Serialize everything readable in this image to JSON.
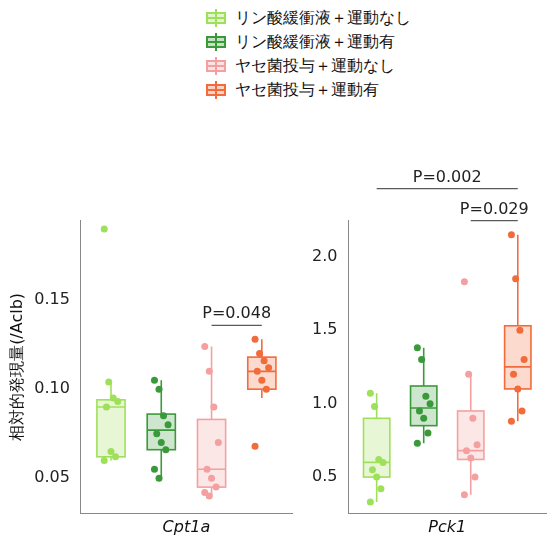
{
  "chart_data": [
    {
      "type": "box",
      "xlabel": "Cpt1a",
      "ylabel": "相対的発現量(/Aclb)",
      "ylim": [
        0.03,
        0.195
      ],
      "yticks": [
        0.05,
        {
          "value": 0.1,
          "label": "0.10"
        },
        0.15
      ],
      "grid": false,
      "legend": "top",
      "tick_labels": "y",
      "series": [
        {
          "name": "リン酸緩衝液＋運動なし",
          "color": "#9fe05a",
          "values": [
            0.19,
            0.104,
            0.095,
            0.093,
            0.09,
            0.065,
            0.062,
            0.06
          ],
          "box": {
            "low": 0.06,
            "q1": 0.062,
            "median": 0.09,
            "q3": 0.094,
            "high": 0.104
          }
        },
        {
          "name": "リン酸緩衝液＋運動有",
          "color": "#3a9a3a",
          "values": [
            0.105,
            0.1,
            0.085,
            0.08,
            0.075,
            0.07,
            0.066,
            0.055,
            0.05
          ],
          "box": {
            "low": 0.05,
            "q1": 0.066,
            "median": 0.077,
            "q3": 0.086,
            "high": 0.105
          }
        },
        {
          "name": "ヤセ菌投与＋運動なし",
          "color": "#f4a0a0",
          "values": [
            0.124,
            0.11,
            0.09,
            0.07,
            0.055,
            0.05,
            0.045,
            0.042,
            0.04
          ],
          "box": {
            "low": 0.04,
            "q1": 0.045,
            "median": 0.055,
            "q3": 0.083,
            "high": 0.124
          }
        },
        {
          "name": "ヤセ菌投与＋運動有",
          "color": "#f26b3a",
          "values": [
            0.128,
            0.12,
            0.116,
            0.112,
            0.11,
            0.105,
            0.1,
            0.068
          ],
          "box": {
            "low": 0.095,
            "q1": 0.1,
            "median": 0.11,
            "q3": 0.118,
            "high": 0.128
          }
        }
      ],
      "annotations": [
        {
          "text": "P=0.048",
          "from": 2,
          "to": 3
        }
      ]
    },
    {
      "type": "box",
      "xlabel": "Pck1",
      "ylim": [
        0.25,
        2.25
      ],
      "yticks": [
        0.5,
        {
          "value": 1,
          "label": "1.0"
        },
        1.5,
        {
          "value": 2,
          "label": "2.0"
        }
      ],
      "grid": false,
      "legend": "top",
      "tick_labels": "y",
      "series": [
        {
          "name": "リン酸緩衝液＋運動なし",
          "color": "#9fe05a",
          "values": [
            1.07,
            0.98,
            0.62,
            0.6,
            0.55,
            0.5,
            0.42,
            0.33
          ],
          "box": {
            "low": 0.33,
            "q1": 0.5,
            "median": 0.6,
            "q3": 0.9,
            "high": 1.07
          }
        },
        {
          "name": "リン酸緩衝液＋運動有",
          "color": "#3a9a3a",
          "values": [
            1.38,
            1.3,
            1.05,
            1.0,
            0.95,
            0.9,
            0.8,
            0.73
          ],
          "box": {
            "low": 0.73,
            "q1": 0.85,
            "median": 0.97,
            "q3": 1.12,
            "high": 1.38
          }
        },
        {
          "name": "ヤセ菌投与＋運動なし",
          "color": "#f4a0a0",
          "values": [
            1.83,
            1.2,
            0.9,
            0.72,
            0.68,
            0.63,
            0.5,
            0.38
          ],
          "box": {
            "low": 0.38,
            "q1": 0.62,
            "median": 0.68,
            "q3": 0.95,
            "high": 1.2
          }
        },
        {
          "name": "ヤセ菌投与＋運動有",
          "color": "#f26b3a",
          "values": [
            2.15,
            1.85,
            1.5,
            1.3,
            1.2,
            1.1,
            0.95,
            0.88
          ],
          "box": {
            "low": 0.88,
            "q1": 1.1,
            "median": 1.25,
            "q3": 1.53,
            "high": 2.15
          }
        }
      ],
      "annotations": [
        {
          "text": "P=0.002",
          "from": 0,
          "to": 3
        },
        {
          "text": "P=0.029",
          "from": 2,
          "to": 3
        }
      ]
    }
  ]
}
